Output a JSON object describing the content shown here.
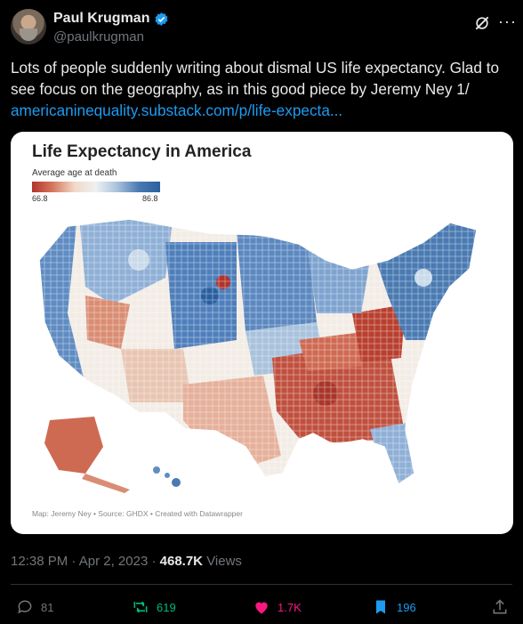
{
  "author": {
    "name": "Paul Krugman",
    "handle": "@paulkrugman"
  },
  "tweet": {
    "text": "Lots of people suddenly writing about dismal US life expectancy. Glad to see focus on the geography, as in this good piece by Jeremy Ney 1/",
    "link": "americaninequality.substack.com/p/life-expecta..."
  },
  "card": {
    "title": "Life Expectancy in America",
    "legend_label": "Average age at death",
    "legend_min": "66.8",
    "legend_max": "86.8",
    "source": "Map: Jeremy Ney • Source: GHDX • Created with Datawrapper"
  },
  "meta": {
    "time": "12:38 PM",
    "date": "Apr 2, 2023",
    "views_count": "468.7K",
    "views_label": "Views"
  },
  "actions": {
    "replies": "81",
    "reposts": "619",
    "likes": "1.7K",
    "bookmarks": "196"
  },
  "colors": {
    "link": "#1d9bf0",
    "repost": "#00ba7c",
    "like": "#f91880",
    "bookmark": "#1d9bf0",
    "verified": "#1d9bf0",
    "low_life_expectancy": "#b2332c",
    "high_life_expectancy": "#2a5f9e"
  }
}
